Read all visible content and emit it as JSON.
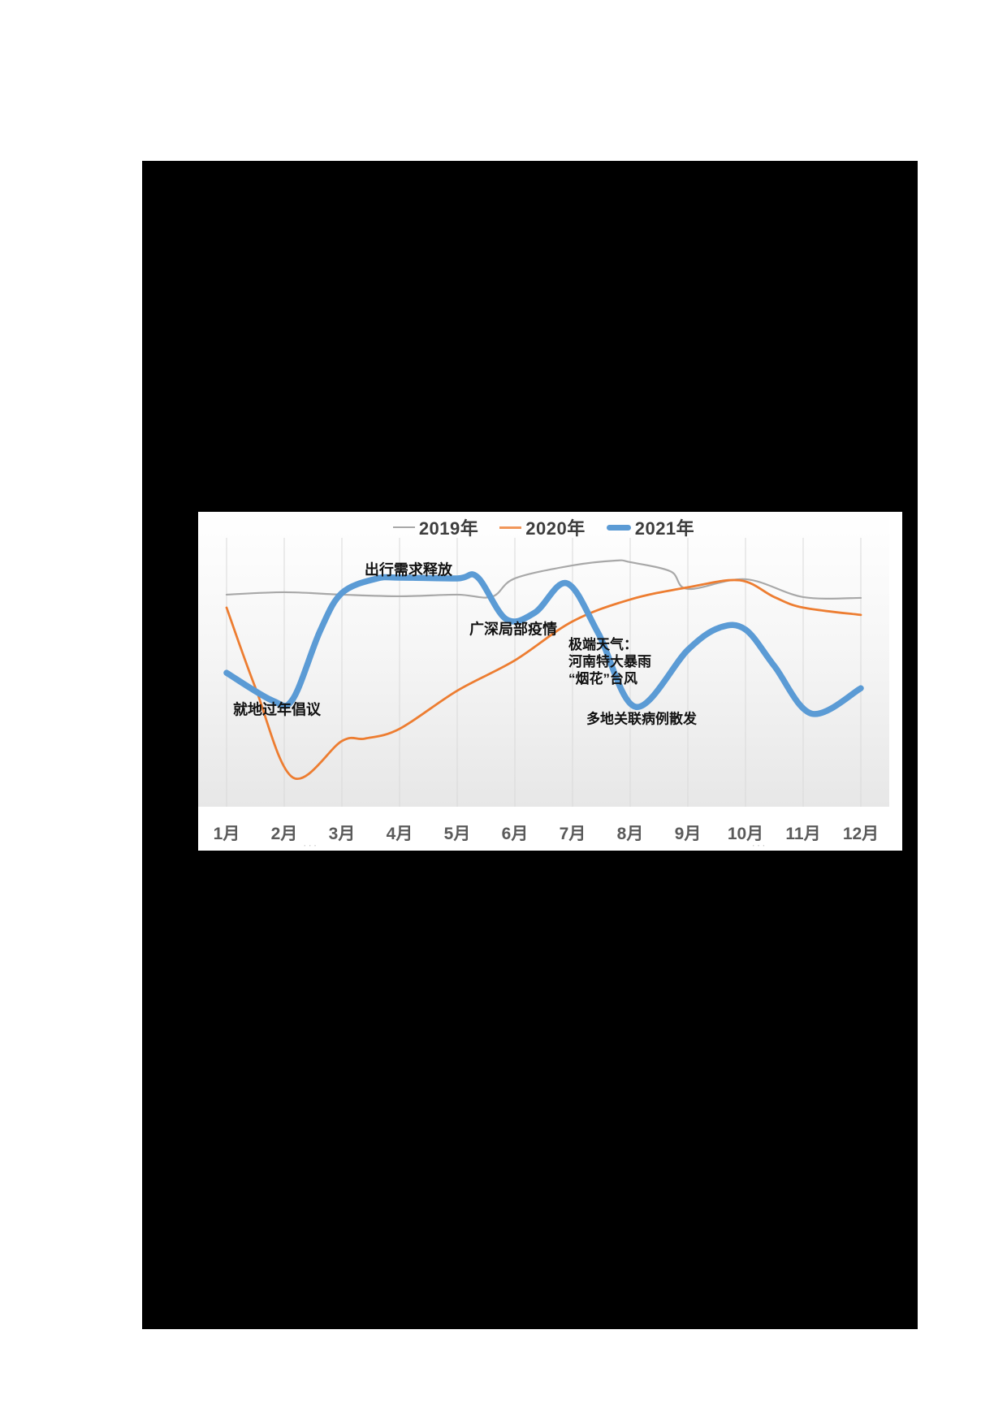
{
  "page": {
    "background_color": "#ffffff",
    "slide_background_color": "#000000",
    "panel_background_color": "#ffffff"
  },
  "chart_data": {
    "type": "line",
    "title": "",
    "categories": [
      "1月",
      "2月",
      "3月",
      "4月",
      "5月",
      "6月",
      "7月",
      "8月",
      "9月",
      "10月",
      "11月",
      "12月"
    ],
    "xlabel": "",
    "ylabel": "",
    "y_axis": {
      "visible": false,
      "range": [
        0,
        100
      ]
    },
    "grid": "vertical-only",
    "gridline_color": "#d9d9d9",
    "legend_position": "top-center",
    "series": [
      {
        "name": "2019年",
        "color": "#a8a8a8",
        "stroke_width": 2.2,
        "points": [
          [
            1,
            78.4
          ],
          [
            2,
            79.3
          ],
          [
            3,
            78.4
          ],
          [
            4,
            77.8
          ],
          [
            5,
            78.4
          ],
          [
            5.6,
            77.6
          ],
          [
            6,
            84.4
          ],
          [
            7,
            89.2
          ],
          [
            7.75,
            91.0
          ],
          [
            8,
            90.4
          ],
          [
            8.7,
            87.0
          ],
          [
            9,
            80.5
          ],
          [
            10,
            84.1
          ],
          [
            11,
            77.5
          ],
          [
            12,
            77.2
          ]
        ]
      },
      {
        "name": "2020年",
        "color": "#ED7D31",
        "stroke_width": 2.8,
        "points": [
          [
            1,
            73.6
          ],
          [
            1.5,
            44.0
          ],
          [
            2.15,
            10.8
          ],
          [
            3,
            24.3
          ],
          [
            3.4,
            25.2
          ],
          [
            4,
            28.8
          ],
          [
            5,
            42.9
          ],
          [
            6,
            54.1
          ],
          [
            7,
            68.5
          ],
          [
            8,
            76.6
          ],
          [
            9,
            81.1
          ],
          [
            9.9,
            83.7
          ],
          [
            10.5,
            77.5
          ],
          [
            11,
            73.6
          ],
          [
            12,
            70.9
          ]
        ]
      },
      {
        "name": "2021年",
        "color": "#5B9BD5",
        "stroke_width": 7.5,
        "points": [
          [
            1,
            49.5
          ],
          [
            1.8,
            39.2
          ],
          [
            2.15,
            39.8
          ],
          [
            2.62,
            64.9
          ],
          [
            3,
            79.0
          ],
          [
            3.6,
            84.3
          ],
          [
            4,
            84.7
          ],
          [
            5,
            84.4
          ],
          [
            5.35,
            84.9
          ],
          [
            5.85,
            69.3
          ],
          [
            6.35,
            71.8
          ],
          [
            6.9,
            82.6
          ],
          [
            7.45,
            64.0
          ],
          [
            8.1,
            36.9
          ],
          [
            9,
            58.0
          ],
          [
            9.55,
            66.2
          ],
          [
            10,
            65.5
          ],
          [
            10.5,
            52.0
          ],
          [
            11.15,
            34.4
          ],
          [
            12,
            43.8
          ]
        ]
      }
    ],
    "annotations": [
      {
        "text": "出行需求释放",
        "m": 4.154,
        "v": 87.4,
        "align": "center",
        "size": "normal"
      },
      {
        "text": "就地过年倡议",
        "m": 1.873,
        "v": 35.7,
        "align": "center",
        "size": "normal"
      },
      {
        "text": "广深局部疫情",
        "m": 5.972,
        "v": 65.5,
        "align": "center",
        "size": "normal"
      },
      {
        "text": "极端天气：\n河南特大暴雨\n“烟花”台风",
        "m": 6.93,
        "v": 63.1,
        "align": "left",
        "size": "small"
      },
      {
        "text": "多地关联病例散发",
        "m": 8.197,
        "v": 32.4,
        "align": "center",
        "size": "small"
      }
    ],
    "artifacts": [
      {
        "text": "···",
        "m": 2.46,
        "v": -14.1
      },
      {
        "text": "···",
        "m": 10.24,
        "v": -14.1
      }
    ]
  },
  "legend": {
    "items": [
      {
        "label": "2019年",
        "swatch": "thin-gray-line"
      },
      {
        "label": "2020年",
        "swatch": "thin-orange-line"
      },
      {
        "label": "2021年",
        "swatch": "thick-blue-line"
      }
    ]
  }
}
